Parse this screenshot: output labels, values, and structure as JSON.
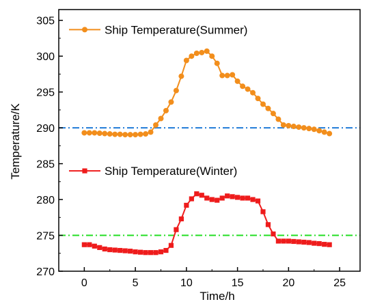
{
  "chart_data": {
    "type": "line",
    "xlabel": "Time/h",
    "ylabel": "Temperature/K",
    "xlim": [
      -2.5,
      27
    ],
    "ylim": [
      270,
      306.5
    ],
    "xticks": [
      0,
      5,
      10,
      15,
      20,
      25
    ],
    "yticks": [
      270,
      275,
      280,
      285,
      290,
      295,
      300,
      305
    ],
    "grid": false,
    "series": [
      {
        "name": "Ship Temperature(Summer)",
        "color": "#F28E1C",
        "marker": "circle",
        "legend_y": 303.7,
        "x": [
          0,
          0.5,
          1,
          1.5,
          2,
          2.5,
          3,
          3.5,
          4,
          4.5,
          5,
          5.5,
          6,
          6.5,
          7,
          7.5,
          8,
          8.5,
          9,
          9.5,
          10,
          10.5,
          11,
          11.5,
          12,
          12.5,
          13,
          13.5,
          14,
          14.5,
          15,
          15.5,
          16,
          16.5,
          17,
          17.5,
          18,
          18.5,
          19,
          19.5,
          20,
          20.5,
          21,
          21.5,
          22,
          22.5,
          23,
          23.5,
          24
        ],
        "values": [
          289.3,
          289.3,
          289.3,
          289.25,
          289.2,
          289.15,
          289.1,
          289.1,
          289.05,
          289.05,
          289.05,
          289.1,
          289.15,
          289.4,
          290.4,
          291.3,
          292.4,
          293.6,
          295.2,
          297.2,
          299.4,
          300.0,
          300.4,
          300.5,
          300.7,
          300.0,
          299.0,
          297.3,
          297.3,
          297.4,
          296.5,
          295.8,
          295.4,
          294.9,
          294.1,
          293.3,
          292.7,
          292.0,
          291.2,
          290.4,
          290.3,
          290.2,
          290.1,
          290.0,
          289.9,
          289.8,
          289.6,
          289.4,
          289.2
        ]
      },
      {
        "name": "Ship Temperature(Winter)",
        "color": "#EE1C1C",
        "marker": "square",
        "legend_y": 284.0,
        "x": [
          0,
          0.5,
          1,
          1.5,
          2,
          2.5,
          3,
          3.5,
          4,
          4.5,
          5,
          5.5,
          6,
          6.5,
          7,
          7.5,
          8,
          8.5,
          9,
          9.5,
          10,
          10.5,
          11,
          11.5,
          12,
          12.5,
          13,
          13.5,
          14,
          14.5,
          15,
          15.5,
          16,
          16.5,
          17,
          17.5,
          18,
          18.5,
          19,
          19.5,
          20,
          20.5,
          21,
          21.5,
          22,
          22.5,
          23,
          23.5,
          24
        ],
        "values": [
          273.7,
          273.7,
          273.5,
          273.3,
          273.1,
          273.0,
          272.95,
          272.9,
          272.85,
          272.8,
          272.7,
          272.65,
          272.6,
          272.6,
          272.6,
          272.7,
          272.9,
          273.6,
          275.8,
          277.3,
          279.2,
          280.1,
          280.8,
          280.6,
          280.2,
          280.0,
          279.9,
          280.2,
          280.5,
          280.4,
          280.3,
          280.2,
          280.2,
          280.0,
          279.8,
          278.3,
          276.5,
          275.2,
          274.2,
          274.2,
          274.2,
          274.15,
          274.1,
          274.05,
          274.0,
          273.9,
          273.85,
          273.75,
          273.7
        ]
      }
    ],
    "reference_lines": [
      {
        "y": 290,
        "color": "#1F7BD8",
        "style": "dash-dot"
      },
      {
        "y": 275,
        "color": "#22DD22",
        "style": "dash-dot"
      }
    ]
  }
}
